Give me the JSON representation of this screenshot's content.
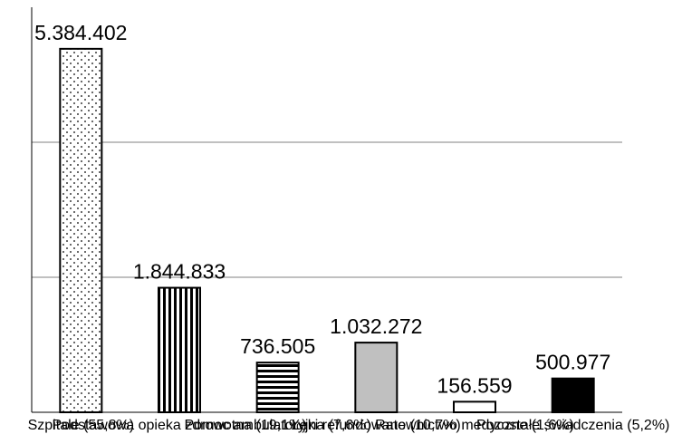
{
  "chart_data": {
    "type": "bar",
    "title": "",
    "xlabel": "",
    "ylabel": "",
    "ylim": [
      0,
      6000000
    ],
    "grid": true,
    "categories": [
      "Szpitale (55,8%)",
      "Podstawowa opieka zdrowotna (19,1%)",
      "Pomoc ambulatoryjna (7,6%)",
      "Leki refundowane (10,7%)",
      "Ratownictwo medyczne (1,6%)",
      "Pozostałe świadczenia (5,2%)"
    ],
    "values": [
      5384402,
      1844833,
      736505,
      1032272,
      156559,
      500977
    ],
    "value_labels": [
      "5.384.402",
      "1.844.833",
      "736.505",
      "1.032.272",
      "156.559",
      "500.977"
    ],
    "patterns": [
      "dots",
      "vertical-stripes",
      "horizontal-stripes",
      "solid-gray",
      "solid-white",
      "solid-black"
    ],
    "colors": {
      "gray": "#c0c0c0",
      "black": "#000000",
      "white": "#ffffff",
      "grid": "#808080"
    }
  }
}
